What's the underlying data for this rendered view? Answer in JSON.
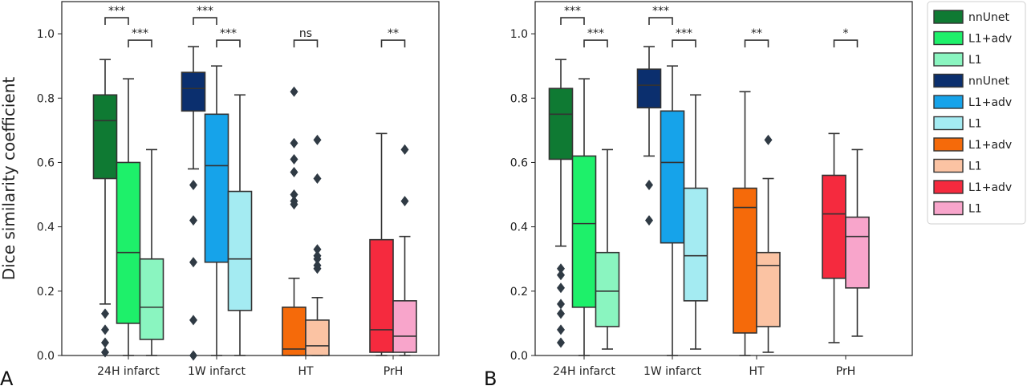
{
  "chart_data": [
    {
      "type": "box",
      "panel_label": "A",
      "ylabel": "Dice similarity coefficient",
      "ylim": [
        0,
        1.1
      ],
      "yticks": [
        0.0,
        0.2,
        0.4,
        0.6,
        0.8,
        1.0
      ],
      "ytick_labels": [
        "0.0",
        "0.2",
        "0.4",
        "0.6",
        "0.8",
        "1.0"
      ],
      "categories": [
        "24H infarct",
        "1W infarct",
        "HT",
        "PrH"
      ],
      "boxes": [
        {
          "group": 0,
          "name": "nnUnet",
          "color": "#0f7a33",
          "whislo": 0.16,
          "q1": 0.55,
          "med": 0.73,
          "q3": 0.81,
          "whishi": 0.92,
          "fliers": [
            0.13,
            0.08,
            0.04,
            0.01
          ]
        },
        {
          "group": 0,
          "name": "L1+adv",
          "color": "#1ef06a",
          "whislo": 0.0,
          "q1": 0.1,
          "med": 0.32,
          "q3": 0.6,
          "whishi": 0.86,
          "fliers": []
        },
        {
          "group": 0,
          "name": "L1",
          "color": "#8af5c0",
          "whislo": 0.0,
          "q1": 0.05,
          "med": 0.15,
          "q3": 0.3,
          "whishi": 0.64,
          "fliers": []
        },
        {
          "group": 1,
          "name": "nnUnet",
          "color": "#0b2f6e",
          "whislo": 0.58,
          "q1": 0.76,
          "med": 0.83,
          "q3": 0.88,
          "whishi": 0.96,
          "fliers": [
            0.53,
            0.42,
            0.29,
            0.11,
            0.0
          ]
        },
        {
          "group": 1,
          "name": "L1+adv",
          "color": "#16a3ea",
          "whislo": 0.0,
          "q1": 0.29,
          "med": 0.59,
          "q3": 0.75,
          "whishi": 0.9,
          "fliers": []
        },
        {
          "group": 1,
          "name": "L1",
          "color": "#a4ebf2",
          "whislo": 0.0,
          "q1": 0.14,
          "med": 0.3,
          "q3": 0.51,
          "whishi": 0.81,
          "fliers": []
        },
        {
          "group": 2,
          "name": "L1+adv",
          "color": "#f56a0a",
          "whislo": 0.0,
          "q1": 0.0,
          "med": 0.02,
          "q3": 0.15,
          "whishi": 0.24,
          "fliers": [
            0.82,
            0.66,
            0.61,
            0.57,
            0.5,
            0.48,
            0.47
          ]
        },
        {
          "group": 2,
          "name": "L1",
          "color": "#fbc3a3",
          "whislo": 0.0,
          "q1": 0.0,
          "med": 0.03,
          "q3": 0.11,
          "whishi": 0.18,
          "fliers": [
            0.67,
            0.55,
            0.33,
            0.31,
            0.3,
            0.28,
            0.27
          ]
        },
        {
          "group": 3,
          "name": "L1+adv",
          "color": "#f52a3e",
          "whislo": 0.0,
          "q1": 0.01,
          "med": 0.08,
          "q3": 0.36,
          "whishi": 0.69,
          "fliers": []
        },
        {
          "group": 3,
          "name": "L1",
          "color": "#f8a5cb",
          "whislo": 0.0,
          "q1": 0.01,
          "med": 0.06,
          "q3": 0.17,
          "whishi": 0.37,
          "fliers": [
            0.64,
            0.48
          ]
        }
      ],
      "significance": [
        {
          "group": 0,
          "from": 0,
          "to": 1,
          "label": "***",
          "y": 1.05
        },
        {
          "group": 0,
          "from": 1,
          "to": 2,
          "label": "***",
          "y": 0.98
        },
        {
          "group": 1,
          "from": 0,
          "to": 1,
          "label": "***",
          "y": 1.05
        },
        {
          "group": 1,
          "from": 1,
          "to": 2,
          "label": "***",
          "y": 0.98
        },
        {
          "group": 2,
          "from": 0,
          "to": 1,
          "label": "ns",
          "y": 0.98
        },
        {
          "group": 3,
          "from": 0,
          "to": 1,
          "label": "**",
          "y": 0.98
        }
      ]
    },
    {
      "type": "box",
      "panel_label": "B",
      "ylim": [
        0,
        1.1
      ],
      "yticks": [
        0.0,
        0.2,
        0.4,
        0.6,
        0.8,
        1.0
      ],
      "ytick_labels": [
        "0.0",
        "0.2",
        "0.4",
        "0.6",
        "0.8",
        "1.0"
      ],
      "categories": [
        "24H infarct",
        "1W infarct",
        "HT",
        "PrH"
      ],
      "boxes": [
        {
          "group": 0,
          "name": "nnUnet",
          "color": "#0f7a33",
          "whislo": 0.34,
          "q1": 0.61,
          "med": 0.75,
          "q3": 0.83,
          "whishi": 0.92,
          "fliers": [
            0.27,
            0.25,
            0.21,
            0.16,
            0.13,
            0.08,
            0.04
          ]
        },
        {
          "group": 0,
          "name": "L1+adv",
          "color": "#1ef06a",
          "whislo": 0.0,
          "q1": 0.15,
          "med": 0.41,
          "q3": 0.62,
          "whishi": 0.86,
          "fliers": []
        },
        {
          "group": 0,
          "name": "L1",
          "color": "#8af5c0",
          "whislo": 0.02,
          "q1": 0.09,
          "med": 0.2,
          "q3": 0.32,
          "whishi": 0.64,
          "fliers": []
        },
        {
          "group": 1,
          "name": "nnUnet",
          "color": "#0b2f6e",
          "whislo": 0.62,
          "q1": 0.77,
          "med": 0.84,
          "q3": 0.89,
          "whishi": 0.96,
          "fliers": [
            0.53,
            0.42
          ]
        },
        {
          "group": 1,
          "name": "L1+adv",
          "color": "#16a3ea",
          "whislo": 0.0,
          "q1": 0.35,
          "med": 0.6,
          "q3": 0.76,
          "whishi": 0.9,
          "fliers": []
        },
        {
          "group": 1,
          "name": "L1",
          "color": "#a4ebf2",
          "whislo": 0.02,
          "q1": 0.17,
          "med": 0.31,
          "q3": 0.52,
          "whishi": 0.81,
          "fliers": []
        },
        {
          "group": 2,
          "name": "L1+adv",
          "color": "#f56a0a",
          "whislo": 0.0,
          "q1": 0.07,
          "med": 0.46,
          "q3": 0.52,
          "whishi": 0.82,
          "fliers": []
        },
        {
          "group": 2,
          "name": "L1",
          "color": "#fbc3a3",
          "whislo": 0.01,
          "q1": 0.09,
          "med": 0.28,
          "q3": 0.32,
          "whishi": 0.55,
          "fliers": [
            0.67
          ]
        },
        {
          "group": 3,
          "name": "L1+adv",
          "color": "#f52a3e",
          "whislo": 0.04,
          "q1": 0.24,
          "med": 0.44,
          "q3": 0.56,
          "whishi": 0.69,
          "fliers": []
        },
        {
          "group": 3,
          "name": "L1",
          "color": "#f8a5cb",
          "whislo": 0.06,
          "q1": 0.21,
          "med": 0.37,
          "q3": 0.43,
          "whishi": 0.64,
          "fliers": []
        }
      ],
      "significance": [
        {
          "group": 0,
          "from": 0,
          "to": 1,
          "label": "***",
          "y": 1.05
        },
        {
          "group": 0,
          "from": 1,
          "to": 2,
          "label": "***",
          "y": 0.98
        },
        {
          "group": 1,
          "from": 0,
          "to": 1,
          "label": "***",
          "y": 1.05
        },
        {
          "group": 1,
          "from": 1,
          "to": 2,
          "label": "***",
          "y": 0.98
        },
        {
          "group": 2,
          "from": 0,
          "to": 1,
          "label": "**",
          "y": 0.98
        },
        {
          "group": 3,
          "from": 0,
          "to": 1,
          "label": "*",
          "y": 0.98
        }
      ]
    }
  ],
  "legend": {
    "placement": "right",
    "entries": [
      {
        "label": "nnUnet",
        "color": "#0f7a33"
      },
      {
        "label": "L1+adv",
        "color": "#1ef06a"
      },
      {
        "label": "L1",
        "color": "#8af5c0"
      },
      {
        "label": "nnUnet",
        "color": "#0b2f6e"
      },
      {
        "label": "L1+adv",
        "color": "#16a3ea"
      },
      {
        "label": "L1",
        "color": "#a4ebf2"
      },
      {
        "label": "L1+adv",
        "color": "#f56a0a"
      },
      {
        "label": "L1",
        "color": "#fbc3a3"
      },
      {
        "label": "L1+adv",
        "color": "#f52a3e"
      },
      {
        "label": "L1",
        "color": "#f8a5cb"
      }
    ]
  }
}
